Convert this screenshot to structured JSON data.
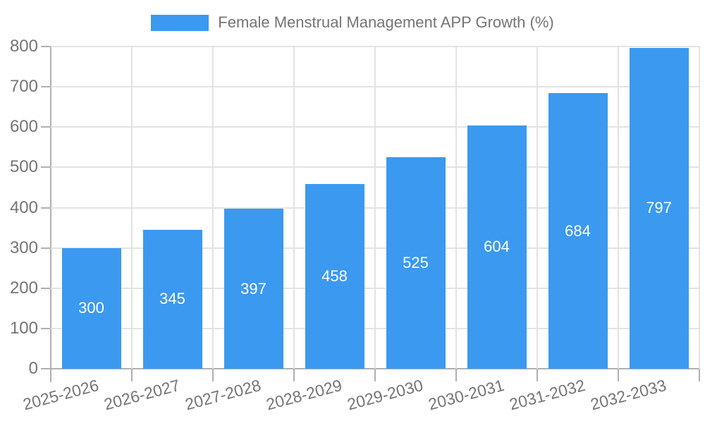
{
  "legend": {
    "label": "Female Menstrual Management APP Growth (%)"
  },
  "colors": {
    "bar": "#3b99ef",
    "bar_label": "#ffffff",
    "gridline": "#e3e3e3",
    "axis": "#b0b0b0",
    "text": "#757575",
    "background": "#ffffff"
  },
  "chart_data": {
    "type": "bar",
    "title": "Female Menstrual Management APP Growth (%)",
    "categories": [
      "2025-2026",
      "2026-2027",
      "2027-2028",
      "2028-2029",
      "2029-2030",
      "2030-2031",
      "2031-2032",
      "2032-2033"
    ],
    "values": [
      300,
      345,
      397,
      458,
      525,
      604,
      684,
      797
    ],
    "xlabel": "",
    "ylabel": "",
    "ylim": [
      0,
      800
    ],
    "yticks": [
      0,
      100,
      200,
      300,
      400,
      500,
      600,
      700,
      800
    ],
    "grid": true,
    "legend_position": "top",
    "bar_value_labels_shown": true,
    "x_tick_rotation_deg": -15
  }
}
